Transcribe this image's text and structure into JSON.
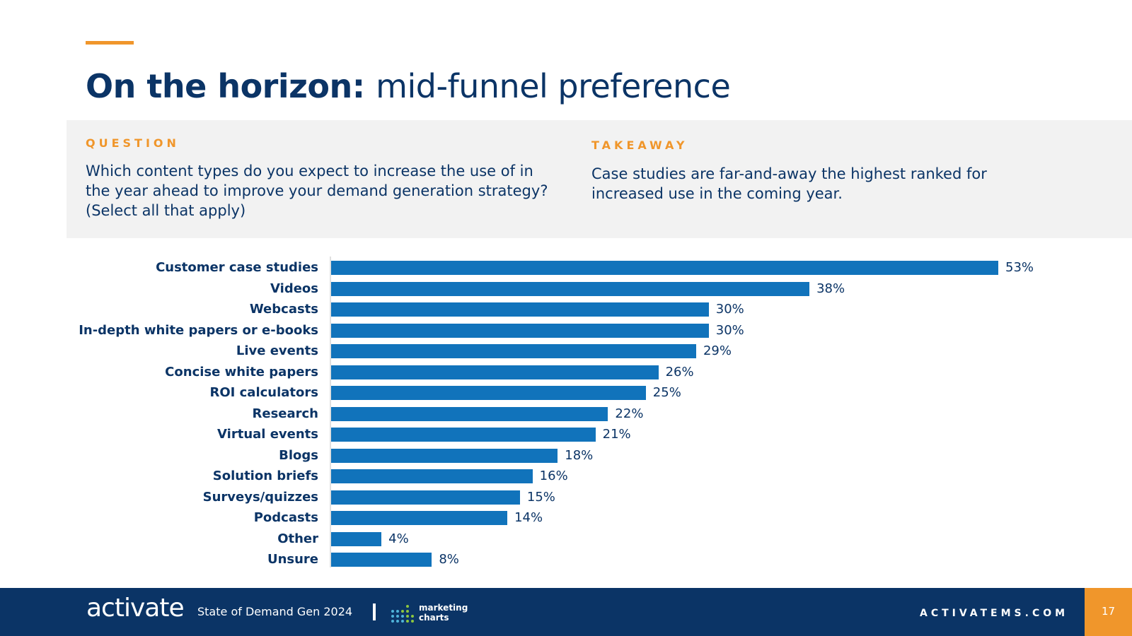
{
  "slide": {
    "title_bold": "On the horizon:",
    "title_light": "mid-funnel preference",
    "accent_color": "#f0962b",
    "primary_color": "#0b3466",
    "bar_color": "#1173bb"
  },
  "question": {
    "label": "QUESTION",
    "text": "Which content types do you expect to increase the use of in the year ahead to improve your demand generation strategy? (Select all that apply)"
  },
  "takeaway": {
    "label": "TAKEAWAY",
    "text": "Case studies are far-and-away the highest ranked for increased use in the coming year."
  },
  "chart_data": {
    "type": "bar",
    "orientation": "horizontal",
    "title": "",
    "xlabel": "",
    "ylabel": "",
    "xlim": [
      0,
      53
    ],
    "grid": false,
    "categories": [
      "Customer case studies",
      "Videos",
      "Webcasts",
      "In-depth white papers or e-books",
      "Live events",
      "Concise white papers",
      "ROI calculators",
      "Research",
      "Virtual events",
      "Blogs",
      "Solution briefs",
      "Surveys/quizzes",
      "Podcasts",
      "Other",
      "Unsure"
    ],
    "values": [
      53,
      38,
      30,
      30,
      29,
      26,
      25,
      22,
      21,
      18,
      16,
      15,
      14,
      4,
      8
    ],
    "value_labels": [
      "53%",
      "38%",
      "30%",
      "30%",
      "29%",
      "26%",
      "25%",
      "22%",
      "21%",
      "18%",
      "16%",
      "15%",
      "14%",
      "4%",
      "8%"
    ]
  },
  "footer": {
    "logo": "activate",
    "report_name": "State of Demand Gen 2024",
    "partner_line1": "marketing",
    "partner_line2": "charts",
    "partner_icon": "dot-grid-icon",
    "website": "ACTIVATEMS.COM",
    "page_number": "17"
  }
}
